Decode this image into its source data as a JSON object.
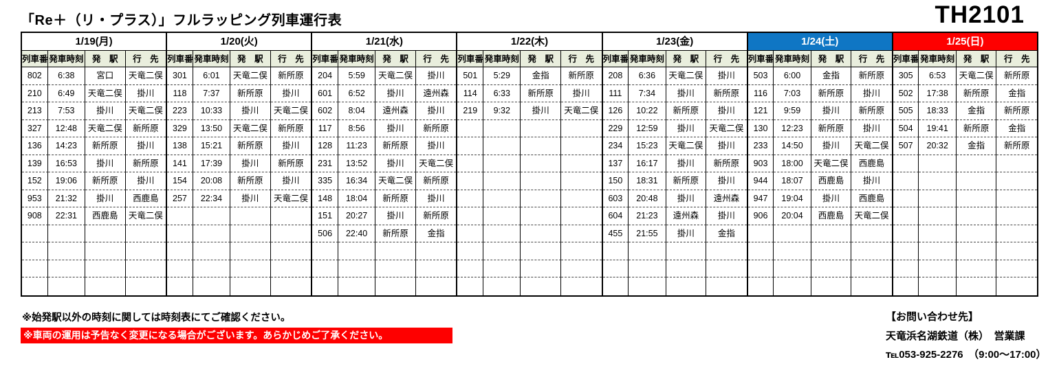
{
  "title": "「Re＋（リ・プラス）」フルラッピング列車運行表",
  "code": "TH2101",
  "colors": {
    "header_green": "#e9eedd",
    "saturday_blue": "#0f76c4",
    "sunday_red": "#fe0000",
    "banner_red": "#fe0000"
  },
  "column_headers": [
    "列車番",
    "発車時刻",
    "発　駅",
    "行　先"
  ],
  "rows_per_day": 13,
  "days": [
    {
      "key": "mon",
      "label": "1/19(月)",
      "type": "weekday",
      "trains": [
        [
          "802",
          "6:38",
          "宮口",
          "天竜二俣"
        ],
        [
          "210",
          "6:49",
          "天竜二俣",
          "掛川"
        ],
        [
          "213",
          "7:53",
          "掛川",
          "天竜二俣"
        ],
        [
          "327",
          "12:48",
          "天竜二俣",
          "新所原"
        ],
        [
          "136",
          "14:23",
          "新所原",
          "掛川"
        ],
        [
          "139",
          "16:53",
          "掛川",
          "新所原"
        ],
        [
          "152",
          "19:06",
          "新所原",
          "掛川"
        ],
        [
          "953",
          "21:32",
          "掛川",
          "西鹿島"
        ],
        [
          "908",
          "22:31",
          "西鹿島",
          "天竜二俣"
        ]
      ]
    },
    {
      "key": "tue",
      "label": "1/20(火)",
      "type": "weekday",
      "trains": [
        [
          "301",
          "6:01",
          "天竜二俣",
          "新所原"
        ],
        [
          "118",
          "7:37",
          "新所原",
          "掛川"
        ],
        [
          "223",
          "10:33",
          "掛川",
          "天竜二俣"
        ],
        [
          "329",
          "13:50",
          "天竜二俣",
          "新所原"
        ],
        [
          "138",
          "15:21",
          "新所原",
          "掛川"
        ],
        [
          "141",
          "17:39",
          "掛川",
          "新所原"
        ],
        [
          "154",
          "20:08",
          "新所原",
          "掛川"
        ],
        [
          "257",
          "22:34",
          "掛川",
          "天竜二俣"
        ]
      ]
    },
    {
      "key": "wed",
      "label": "1/21(水)",
      "type": "weekday",
      "trains": [
        [
          "204",
          "5:59",
          "天竜二俣",
          "掛川"
        ],
        [
          "601",
          "6:52",
          "掛川",
          "遠州森"
        ],
        [
          "602",
          "8:04",
          "遠州森",
          "掛川"
        ],
        [
          "117",
          "8:56",
          "掛川",
          "新所原"
        ],
        [
          "128",
          "11:23",
          "新所原",
          "掛川"
        ],
        [
          "231",
          "13:52",
          "掛川",
          "天竜二俣"
        ],
        [
          "335",
          "16:34",
          "天竜二俣",
          "新所原"
        ],
        [
          "148",
          "18:04",
          "新所原",
          "掛川"
        ],
        [
          "151",
          "20:27",
          "掛川",
          "新所原"
        ],
        [
          "506",
          "22:40",
          "新所原",
          "金指"
        ]
      ]
    },
    {
      "key": "thu",
      "label": "1/22(木)",
      "type": "weekday",
      "trains": [
        [
          "501",
          "5:29",
          "金指",
          "新所原"
        ],
        [
          "114",
          "6:33",
          "新所原",
          "掛川"
        ],
        [
          "219",
          "9:32",
          "掛川",
          "天竜二俣"
        ]
      ]
    },
    {
      "key": "fri",
      "label": "1/23(金)",
      "type": "weekday",
      "trains": [
        [
          "208",
          "6:36",
          "天竜二俣",
          "掛川"
        ],
        [
          "111",
          "7:34",
          "掛川",
          "新所原"
        ],
        [
          "126",
          "10:22",
          "新所原",
          "掛川"
        ],
        [
          "229",
          "12:59",
          "掛川",
          "天竜二俣"
        ],
        [
          "234",
          "15:23",
          "天竜二俣",
          "掛川"
        ],
        [
          "137",
          "16:17",
          "掛川",
          "新所原"
        ],
        [
          "150",
          "18:31",
          "新所原",
          "掛川"
        ],
        [
          "603",
          "20:48",
          "掛川",
          "遠州森"
        ],
        [
          "604",
          "21:23",
          "遠州森",
          "掛川"
        ],
        [
          "455",
          "21:55",
          "掛川",
          "金指"
        ]
      ]
    },
    {
      "key": "sat",
      "label": "1/24(土)",
      "type": "saturday",
      "trains": [
        [
          "503",
          "6:00",
          "金指",
          "新所原"
        ],
        [
          "116",
          "7:03",
          "新所原",
          "掛川"
        ],
        [
          "121",
          "9:59",
          "掛川",
          "新所原"
        ],
        [
          "130",
          "12:23",
          "新所原",
          "掛川"
        ],
        [
          "233",
          "14:50",
          "掛川",
          "天竜二俣"
        ],
        [
          "903",
          "18:00",
          "天竜二俣",
          "西鹿島"
        ],
        [
          "944",
          "18:07",
          "西鹿島",
          "掛川"
        ],
        [
          "947",
          "19:04",
          "掛川",
          "西鹿島"
        ],
        [
          "906",
          "20:04",
          "西鹿島",
          "天竜二俣"
        ]
      ]
    },
    {
      "key": "sun",
      "label": "1/25(日)",
      "type": "sunday",
      "trains": [
        [
          "305",
          "6:53",
          "天竜二俣",
          "新所原"
        ],
        [
          "502",
          "17:38",
          "新所原",
          "金指"
        ],
        [
          "505",
          "18:33",
          "金指",
          "新所原"
        ],
        [
          "504",
          "19:41",
          "新所原",
          "金指"
        ],
        [
          "507",
          "20:32",
          "金指",
          "新所原"
        ]
      ]
    }
  ],
  "notes": [
    "※始発駅以外の時刻に関しては時刻表にてご確認ください。",
    "※車両の運用は予告なく変更になる場合がございます。あらかじめご了承ください。"
  ],
  "contact": {
    "heading": "【お問い合わせ先】",
    "company": "天竜浜名湖鉄道（株）　営業課",
    "phone": "℡053-925-2276　（9:00～17:00）"
  }
}
